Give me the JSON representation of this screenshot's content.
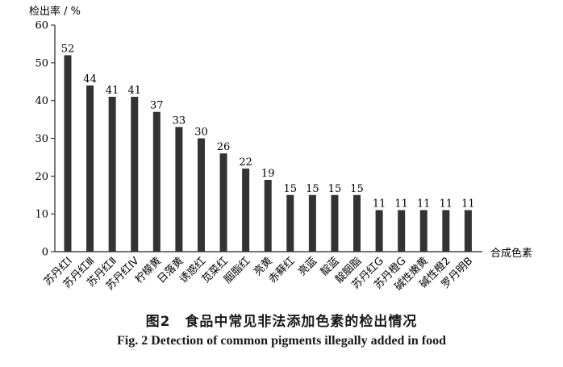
{
  "chart_data": {
    "type": "bar",
    "ylabel": "检出率 / %",
    "xlabel": "合成色素",
    "ylim": [
      0,
      60
    ],
    "yticks": [
      0,
      10,
      20,
      30,
      40,
      50,
      60
    ],
    "categories": [
      "苏丹红Ⅰ",
      "苏丹红Ⅲ",
      "苏丹红Ⅱ",
      "苏丹红Ⅳ",
      "柠檬黄",
      "日落黄",
      "诱惑红",
      "苋菜红",
      "胭脂红",
      "亮黄",
      "赤藓红",
      "亮蓝",
      "靛蓝",
      "靛胭脂",
      "苏丹红G",
      "苏丹橙G",
      "碱性嫩黄",
      "碱性橙2",
      "罗丹明B"
    ],
    "values": [
      52,
      44,
      41,
      41,
      37,
      33,
      30,
      26,
      22,
      19,
      15,
      15,
      15,
      15,
      11,
      11,
      11,
      11,
      11
    ],
    "grid": false,
    "bar_color": "#333333"
  },
  "caption": {
    "cn": "图2　食品中常见非法添加色素的检出情况",
    "en": "Fig. 2   Detection of common pigments illegally added in food"
  }
}
